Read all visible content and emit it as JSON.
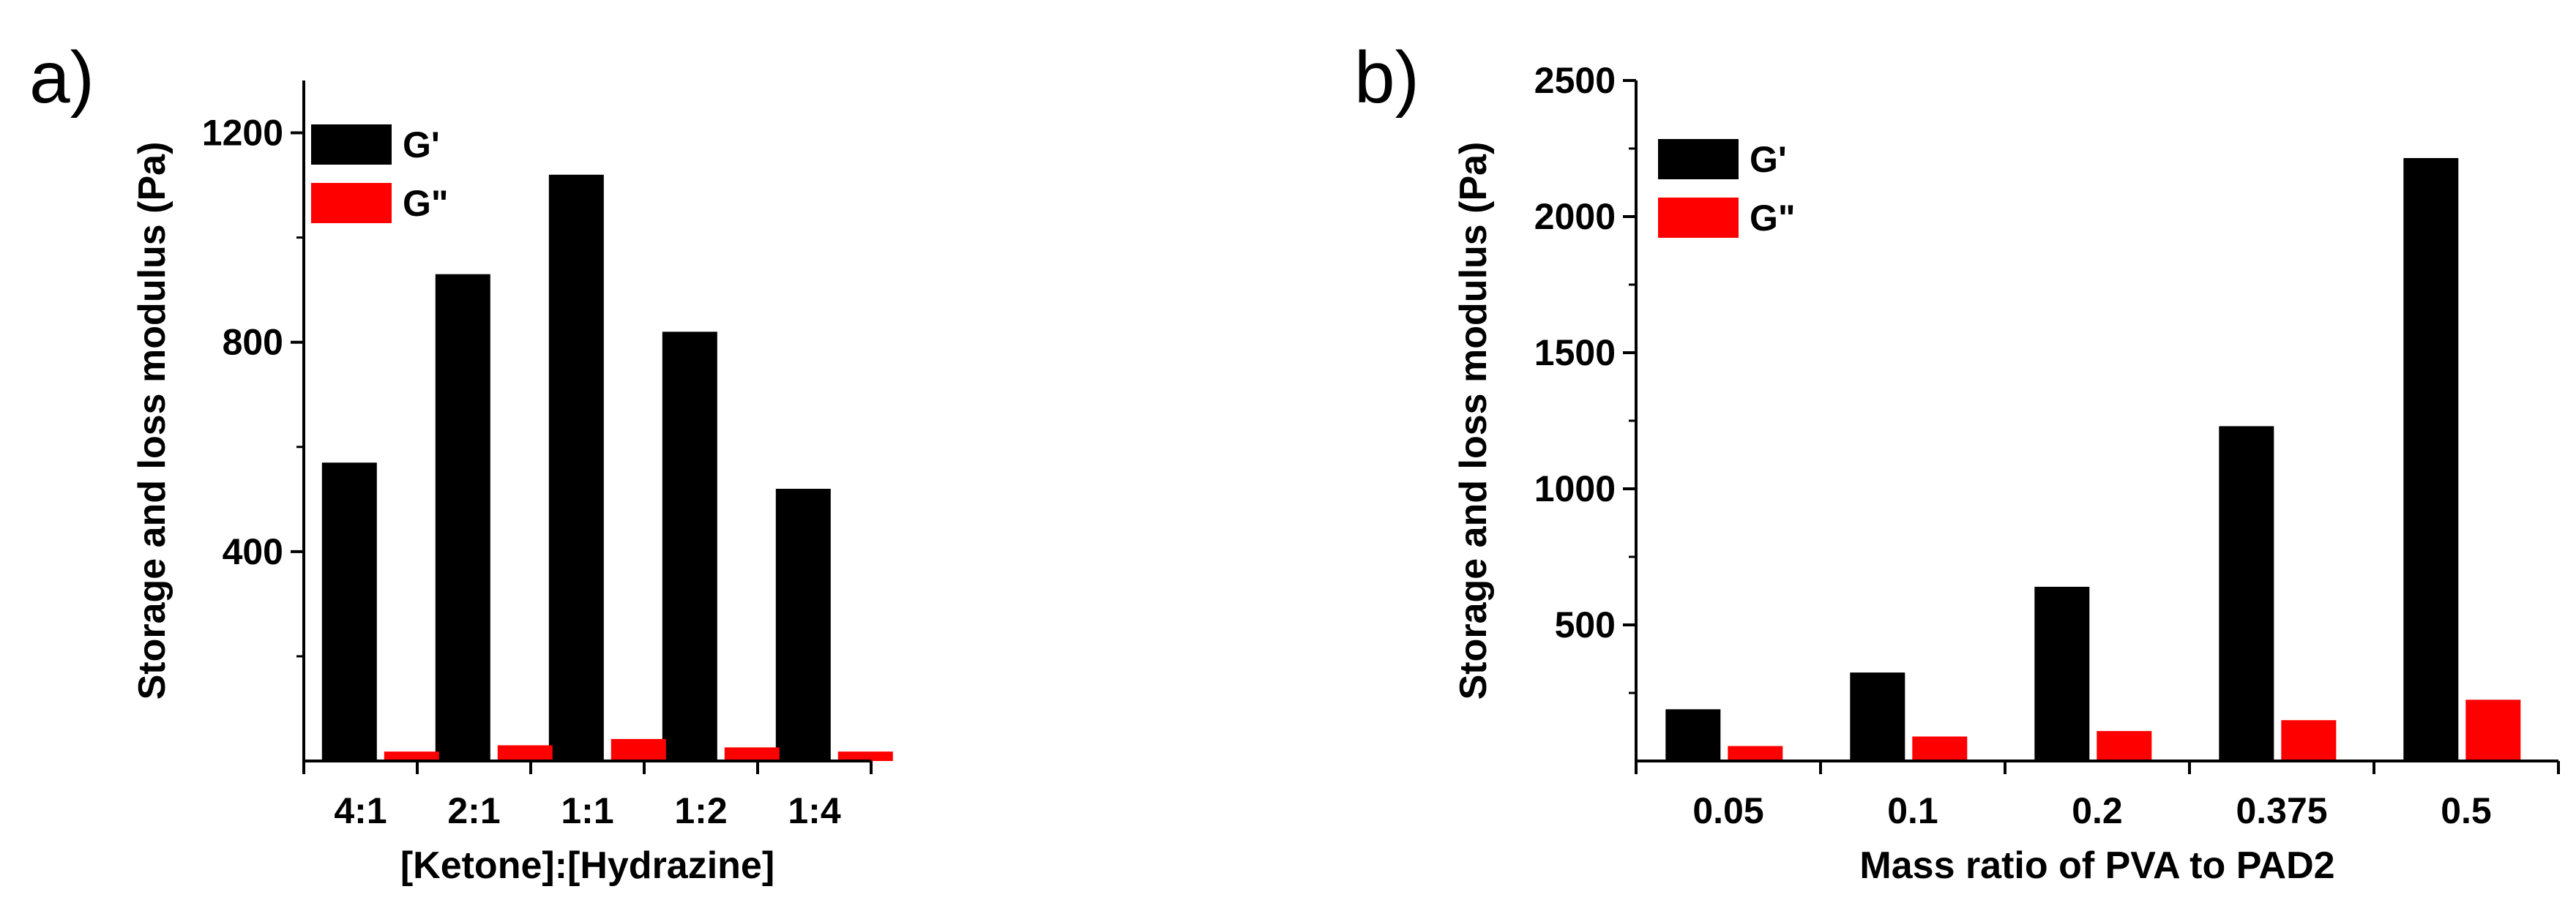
{
  "chart_data": [
    {
      "type": "bar",
      "panel_label": "a)",
      "title": "",
      "xlabel": "[Ketone]:[Hydrazine]",
      "ylabel": "Storage and loss modulus (Pa)",
      "categories": [
        "4:1",
        "2:1",
        "1:1",
        "1:2",
        "1:4"
      ],
      "series": [
        {
          "name": "G'",
          "color": "#000000",
          "values": [
            570,
            930,
            1120,
            820,
            520
          ]
        },
        {
          "name": "G\"",
          "color": "#ff0000",
          "values": [
            18,
            30,
            42,
            26,
            18
          ]
        }
      ],
      "ylim": [
        0,
        1300
      ],
      "yticks": [
        400,
        800,
        1200
      ],
      "yticks_minor": [
        200,
        600,
        1000
      ],
      "grid": false,
      "legend": "top-left"
    },
    {
      "type": "bar",
      "panel_label": "b)",
      "title": "",
      "xlabel": "Mass ratio of PVA to PAD2",
      "ylabel": "Storage and loss modulus (Pa)",
      "categories": [
        "0.05",
        "0.1",
        "0.2",
        "0.375",
        "0.5"
      ],
      "series": [
        {
          "name": "G'",
          "color": "#000000",
          "values": [
            190,
            325,
            640,
            1230,
            2215
          ]
        },
        {
          "name": "G\"",
          "color": "#ff0000",
          "values": [
            55,
            90,
            110,
            150,
            225
          ]
        }
      ],
      "ylim": [
        0,
        2500
      ],
      "yticks": [
        500,
        1000,
        1500,
        2000,
        2500
      ],
      "yticks_minor": [
        250,
        750,
        1250,
        1750,
        2250
      ],
      "grid": false,
      "legend": "top-left"
    }
  ]
}
